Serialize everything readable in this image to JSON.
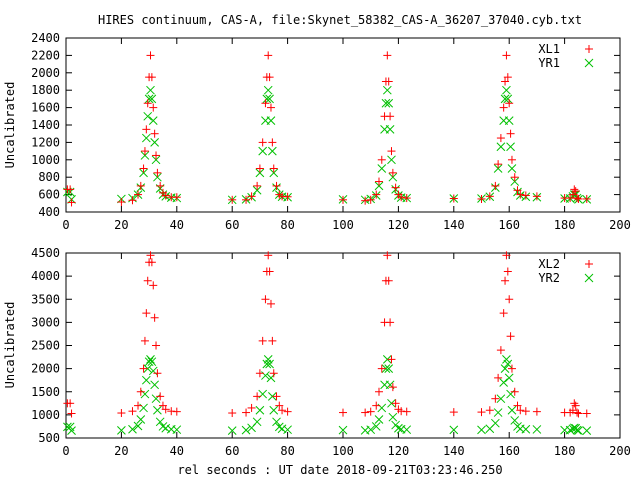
{
  "title": "HIRES continuum, CAS-A, file:Skynet_58382_CAS-A_36207_37040.cyb.txt",
  "xlabel": "rel seconds : UT date 2018-09-21T03:23:46.250",
  "colors": {
    "red": "#ff0000",
    "green": "#00c000"
  },
  "chart_data": [
    {
      "type": "scatter",
      "ylabel": "Uncalibrated",
      "xlim": [
        0,
        200
      ],
      "ylim": [
        400,
        2400
      ],
      "xticks": [
        0,
        20,
        40,
        60,
        80,
        100,
        120,
        140,
        160,
        180,
        200
      ],
      "yticks": [
        400,
        600,
        800,
        1000,
        1200,
        1400,
        1600,
        1800,
        2000,
        2200,
        2400
      ],
      "legend": "top-right",
      "series": [
        {
          "name": "XL1",
          "marker": "plus",
          "color": "#ff0000",
          "x": [
            0.5,
            1.5,
            2,
            20,
            24,
            26,
            27,
            28,
            28.5,
            29,
            29.5,
            30,
            30.5,
            31,
            31.5,
            32,
            32.5,
            33,
            34,
            35,
            36,
            38,
            40,
            60,
            65,
            67,
            69,
            70,
            71,
            72,
            72.5,
            73,
            73.5,
            74,
            74.5,
            75,
            76,
            77,
            78,
            80,
            100,
            108,
            110,
            112,
            113,
            114,
            115,
            115.5,
            116,
            116.5,
            117,
            117.5,
            118,
            119,
            120,
            121,
            123,
            140,
            150,
            153,
            155,
            156,
            157,
            158,
            158.5,
            159,
            159.5,
            160,
            160.5,
            161,
            162,
            163,
            164,
            166,
            170,
            180,
            182,
            183,
            183.5,
            184,
            184.5,
            185,
            188
          ],
          "y": [
            660,
            660,
            510,
            515,
            535,
            600,
            700,
            900,
            1100,
            1350,
            1650,
            1950,
            2200,
            1950,
            1600,
            1300,
            1050,
            850,
            700,
            620,
            590,
            570,
            570,
            540,
            540,
            580,
            700,
            900,
            1200,
            1650,
            1950,
            2200,
            1950,
            1600,
            1200,
            900,
            700,
            600,
            580,
            575,
            540,
            530,
            540,
            600,
            750,
            1000,
            1500,
            1900,
            2200,
            1900,
            1500,
            1100,
            850,
            680,
            600,
            570,
            560,
            555,
            550,
            580,
            700,
            950,
            1250,
            1600,
            1900,
            2200,
            1950,
            1650,
            1300,
            1000,
            800,
            650,
            600,
            590,
            580,
            560,
            560,
            600,
            660,
            640,
            560,
            550,
            550
          ]
        },
        {
          "name": "YR1",
          "marker": "cross",
          "color": "#00c000",
          "x": [
            0.5,
            1.5,
            2,
            20,
            24,
            26,
            27,
            28,
            28.5,
            29,
            29.5,
            30,
            30.5,
            31,
            31.5,
            32,
            32.5,
            33,
            34,
            35,
            36,
            38,
            40,
            60,
            65,
            67,
            69,
            70,
            71,
            72,
            72.5,
            73,
            73.5,
            74,
            74.5,
            75,
            76,
            77,
            78,
            80,
            100,
            108,
            110,
            112,
            113,
            114,
            115,
            115.5,
            116,
            116.5,
            117,
            117.5,
            118,
            119,
            120,
            121,
            123,
            140,
            150,
            153,
            155,
            156,
            157,
            158,
            158.5,
            159,
            159.5,
            160,
            160.5,
            161,
            162,
            163,
            164,
            166,
            170,
            180,
            182,
            183,
            183.5,
            184,
            184.5,
            185,
            188
          ],
          "y": [
            630,
            630,
            545,
            550,
            560,
            600,
            680,
            850,
            1050,
            1250,
            1500,
            1700,
            1800,
            1700,
            1450,
            1200,
            1000,
            800,
            670,
            600,
            580,
            565,
            560,
            540,
            545,
            570,
            650,
            850,
            1100,
            1450,
            1700,
            1800,
            1700,
            1450,
            1100,
            850,
            680,
            600,
            575,
            570,
            545,
            540,
            550,
            590,
            700,
            900,
            1350,
            1650,
            1800,
            1650,
            1350,
            1000,
            800,
            660,
            590,
            565,
            560,
            555,
            555,
            575,
            680,
            900,
            1150,
            1450,
            1700,
            1800,
            1700,
            1450,
            1150,
            900,
            750,
            630,
            590,
            575,
            570,
            555,
            555,
            580,
            600,
            600,
            560,
            545,
            545
          ]
        }
      ]
    },
    {
      "type": "scatter",
      "ylabel": "Uncalibrated",
      "xlim": [
        0,
        200
      ],
      "ylim": [
        500,
        4500
      ],
      "xticks": [
        0,
        20,
        40,
        60,
        80,
        100,
        120,
        140,
        160,
        180,
        200
      ],
      "yticks": [
        500,
        1000,
        1500,
        2000,
        2500,
        3000,
        3500,
        4000,
        4500
      ],
      "legend": "top-right",
      "series": [
        {
          "name": "XL2",
          "marker": "plus",
          "color": "#ff0000",
          "x": [
            0.5,
            1.5,
            2,
            20,
            24,
            26,
            27,
            28,
            28.5,
            29,
            29.5,
            30,
            30.5,
            31,
            31.5,
            32,
            32.5,
            33,
            34,
            35,
            36,
            38,
            40,
            60,
            65,
            67,
            69,
            70,
            71,
            72,
            72.5,
            73,
            73.5,
            74,
            74.5,
            75,
            76,
            77,
            78,
            80,
            100,
            108,
            110,
            112,
            113,
            114,
            115,
            115.5,
            116,
            116.5,
            117,
            117.5,
            118,
            119,
            120,
            121,
            123,
            140,
            150,
            153,
            155,
            156,
            157,
            158,
            158.5,
            159,
            159.5,
            160,
            160.5,
            161,
            162,
            163,
            164,
            166,
            170,
            180,
            182,
            183,
            183.5,
            184,
            184.5,
            185,
            188
          ],
          "y": [
            1250,
            1250,
            1030,
            1040,
            1080,
            1200,
            1500,
            2000,
            2600,
            3200,
            3900,
            4300,
            4450,
            4300,
            3800,
            3100,
            2500,
            1900,
            1400,
            1200,
            1120,
            1080,
            1070,
            1040,
            1050,
            1150,
            1400,
            1900,
            2600,
            3500,
            4100,
            4450,
            4100,
            3400,
            2600,
            1900,
            1400,
            1200,
            1100,
            1070,
            1050,
            1050,
            1070,
            1200,
            1500,
            2000,
            3000,
            3900,
            4450,
            3900,
            3000,
            2200,
            1600,
            1250,
            1120,
            1080,
            1070,
            1060,
            1060,
            1100,
            1350,
            1800,
            2400,
            3200,
            3900,
            4450,
            4100,
            3500,
            2700,
            2000,
            1500,
            1200,
            1100,
            1080,
            1070,
            1050,
            1050,
            1100,
            1250,
            1200,
            1050,
            1030,
            1030
          ]
        },
        {
          "name": "YR2",
          "marker": "cross",
          "color": "#00c000",
          "x": [
            0.5,
            1.5,
            2,
            20,
            24,
            26,
            27,
            28,
            28.5,
            29,
            29.5,
            30,
            30.5,
            31,
            31.5,
            32,
            32.5,
            33,
            34,
            35,
            36,
            38,
            40,
            60,
            65,
            67,
            69,
            70,
            71,
            72,
            72.5,
            73,
            73.5,
            74,
            74.5,
            75,
            76,
            77,
            78,
            80,
            100,
            108,
            110,
            112,
            113,
            114,
            115,
            115.5,
            116,
            116.5,
            117,
            117.5,
            118,
            119,
            120,
            121,
            123,
            140,
            150,
            153,
            155,
            156,
            157,
            158,
            158.5,
            159,
            159.5,
            160,
            160.5,
            161,
            162,
            163,
            164,
            166,
            170,
            180,
            182,
            183,
            183.5,
            184,
            184.5,
            185,
            188
          ],
          "y": [
            740,
            740,
            660,
            665,
            690,
            760,
            900,
            1150,
            1450,
            1750,
            2000,
            2150,
            2200,
            2150,
            1950,
            1650,
            1350,
            1100,
            850,
            750,
            710,
            690,
            680,
            660,
            670,
            720,
            850,
            1100,
            1450,
            1850,
            2100,
            2200,
            2100,
            1800,
            1400,
            1100,
            850,
            740,
            700,
            680,
            670,
            665,
            680,
            750,
            900,
            1150,
            1650,
            2000,
            2200,
            2000,
            1650,
            1250,
            950,
            780,
            710,
            690,
            680,
            675,
            675,
            700,
            820,
            1050,
            1350,
            1700,
            2000,
            2200,
            2100,
            1800,
            1450,
            1100,
            880,
            750,
            700,
            690,
            685,
            670,
            670,
            700,
            720,
            710,
            670,
            660,
            660
          ]
        }
      ]
    }
  ]
}
